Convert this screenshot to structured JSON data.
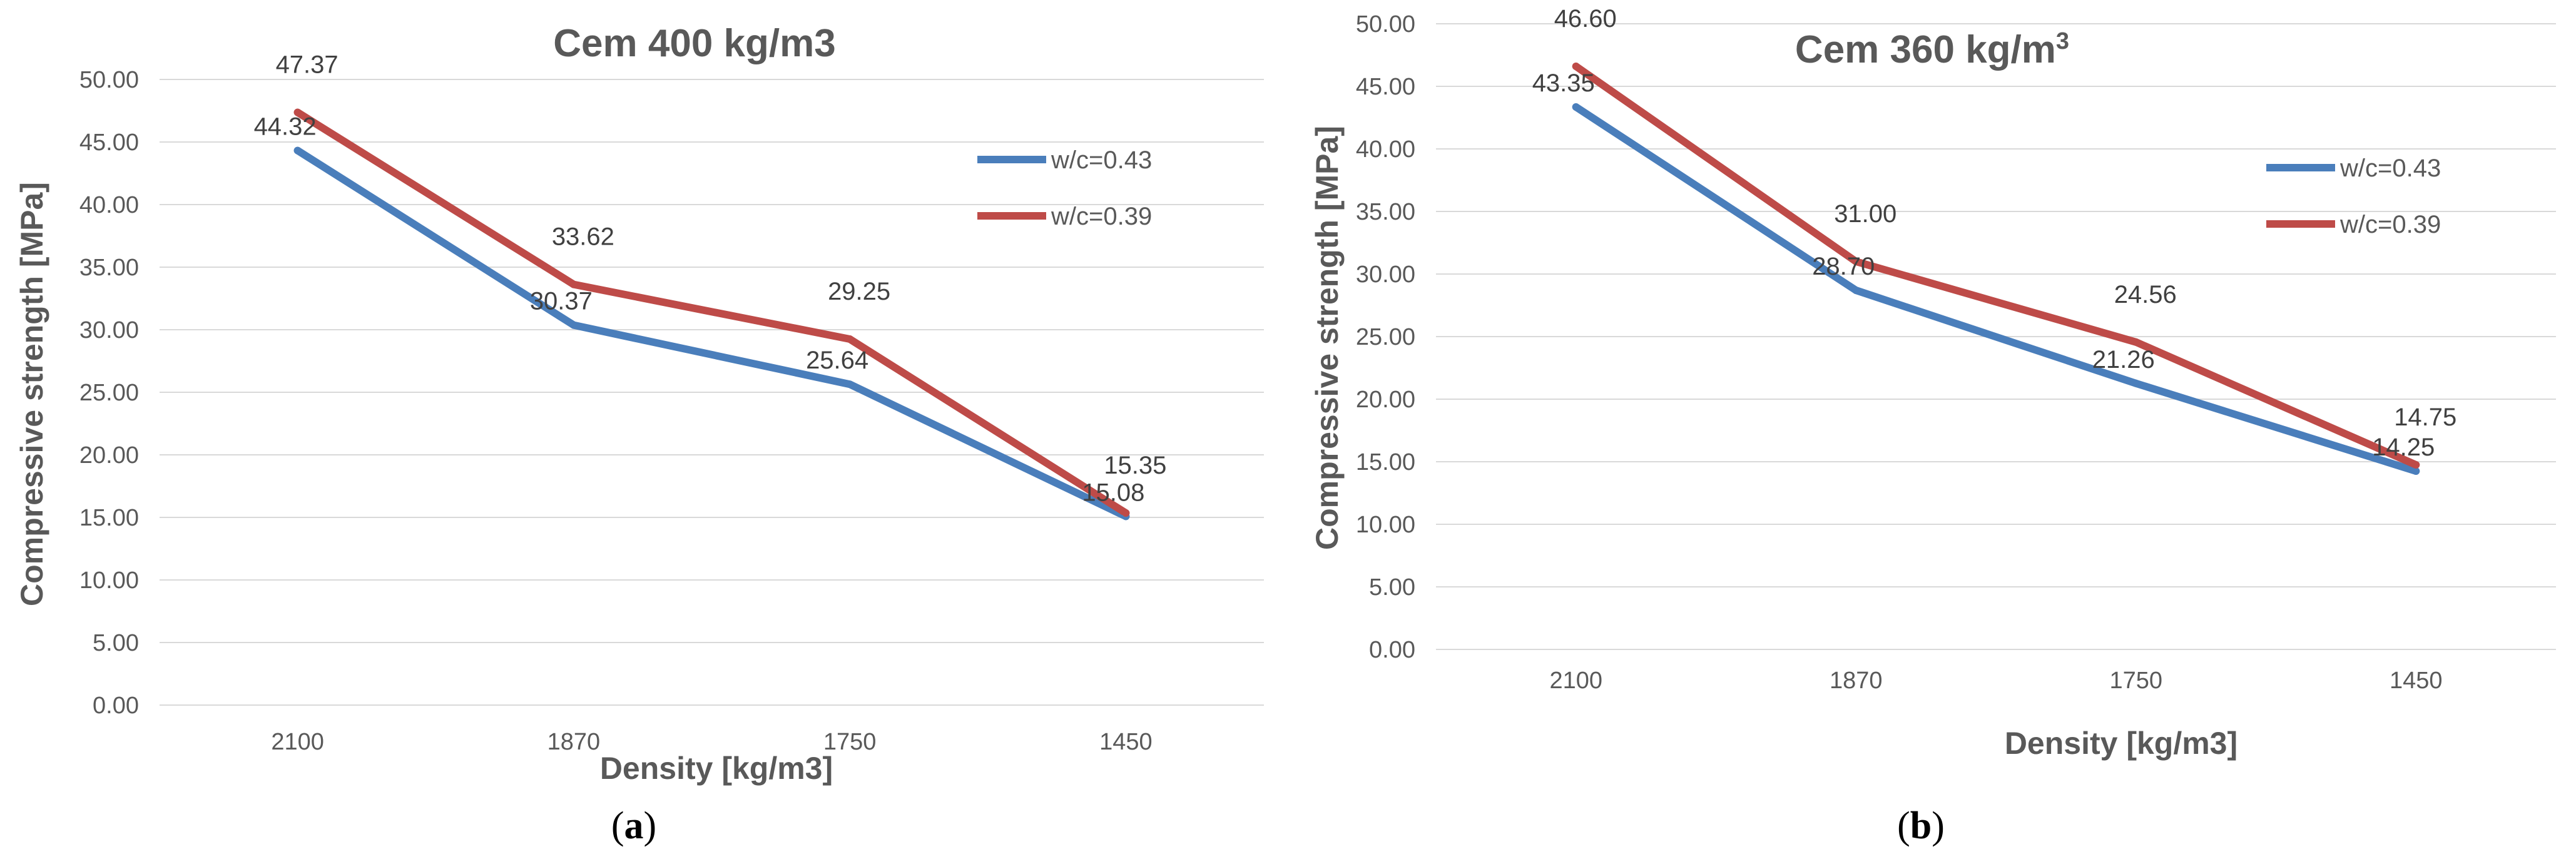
{
  "chart_data": [
    {
      "type": "line",
      "panel_caption": {
        "open": "(",
        "letter": "a",
        "close": ")"
      },
      "title": {
        "main": "Cem 400 kg/m3",
        "superscript": ""
      },
      "xlabel": "Density [kg/m3]",
      "ylabel": "Compressive strength [MPa]",
      "ylim": [
        0,
        50
      ],
      "ytick_step": 5,
      "categories": [
        "2100",
        "1870",
        "1750",
        "1450"
      ],
      "series": [
        {
          "name": "w/c=0.43",
          "color": "#4a7ebb",
          "values": [
            44.32,
            30.37,
            25.64,
            15.08
          ],
          "labels": [
            "44.32",
            "30.37",
            "25.64",
            "15.08"
          ]
        },
        {
          "name": "w/c=0.39",
          "color": "#be4b48",
          "values": [
            47.37,
            33.62,
            29.25,
            15.35
          ],
          "labels": [
            "47.37",
            "33.62",
            "29.25",
            "15.35"
          ]
        }
      ],
      "grid": true,
      "legend": "right"
    },
    {
      "type": "line",
      "panel_caption": {
        "open": "(",
        "letter": "b",
        "close": ")"
      },
      "title": {
        "main": "Cem 360 kg/m",
        "superscript": "3"
      },
      "xlabel": "Density [kg/m3]",
      "ylabel": "Compressive strength [MPa]",
      "ylim": [
        0,
        50
      ],
      "ytick_step": 5,
      "categories": [
        "2100",
        "1870",
        "1750",
        "1450"
      ],
      "series": [
        {
          "name": "w/c=0.43",
          "color": "#4a7ebb",
          "values": [
            43.35,
            28.7,
            21.26,
            14.25
          ],
          "labels": [
            "43.35",
            "28.70",
            "21.26",
            "14.25"
          ]
        },
        {
          "name": "w/c=0.39",
          "color": "#be4b48",
          "values": [
            46.6,
            31.0,
            24.56,
            14.75
          ],
          "labels": [
            "46.60",
            "31.00",
            "24.56",
            "14.75"
          ]
        }
      ],
      "grid": true,
      "legend": "right"
    }
  ]
}
